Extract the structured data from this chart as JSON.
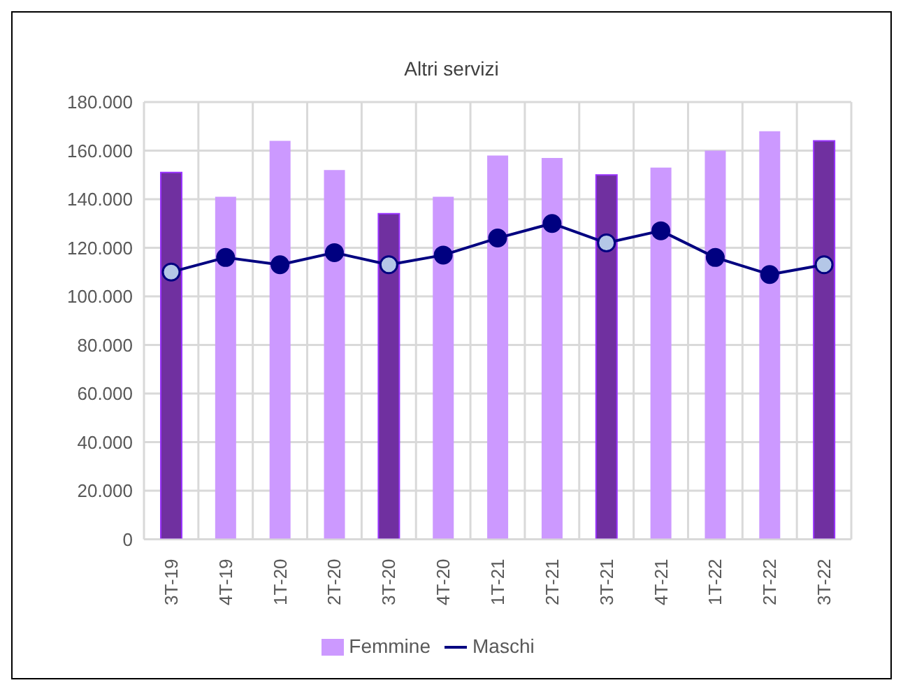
{
  "chart_data": {
    "type": "bar",
    "title": "Altri servizi",
    "categories": [
      "3T-19",
      "4T-19",
      "1T-20",
      "2T-20",
      "3T-20",
      "4T-20",
      "1T-21",
      "2T-21",
      "3T-21",
      "4T-21",
      "1T-22",
      "2T-22",
      "3T-22"
    ],
    "series": [
      {
        "name": "Femmine",
        "color": "#cc99ff",
        "colors": [
          "#7030a0",
          "#cc99ff",
          "#cc99ff",
          "#cc99ff",
          "#7030a0",
          "#cc99ff",
          "#cc99ff",
          "#cc99ff",
          "#7030a0",
          "#cc99ff",
          "#cc99ff",
          "#cc99ff",
          "#7030a0"
        ],
        "values": [
          151000,
          141000,
          164000,
          152000,
          134000,
          141000,
          158000,
          157000,
          150000,
          153000,
          160000,
          168000,
          164000
        ]
      },
      {
        "name": "Maschi",
        "type": "line",
        "color": "#000080",
        "colors": [
          "#b4c7e7",
          "#000080",
          "#000080",
          "#000080",
          "#b4c7e7",
          "#000080",
          "#000080",
          "#000080",
          "#b4c7e7",
          "#000080",
          "#000080",
          "#000080",
          "#b4c7e7"
        ],
        "values": [
          110000,
          116000,
          113000,
          118000,
          113000,
          117000,
          124000,
          130000,
          122000,
          127000,
          116000,
          109000,
          113000
        ]
      }
    ],
    "ylim": [
      0,
      180000
    ],
    "yticks": [
      {
        "value": 0,
        "label": "0"
      },
      {
        "value": 20000,
        "label": "20.000"
      },
      {
        "value": 40000,
        "label": "40.000"
      },
      {
        "value": 60000,
        "label": "60.000"
      },
      {
        "value": 80000,
        "label": "80.000"
      },
      {
        "value": 100000,
        "label": "100.000"
      },
      {
        "value": 120000,
        "label": "120.000"
      },
      {
        "value": 140000,
        "label": "140.000"
      },
      {
        "value": 160000,
        "label": "160.000"
      },
      {
        "value": 180000,
        "label": "180.000"
      }
    ],
    "grid": true,
    "legend": "bottom",
    "marker": "circle",
    "line_style": "solid"
  }
}
